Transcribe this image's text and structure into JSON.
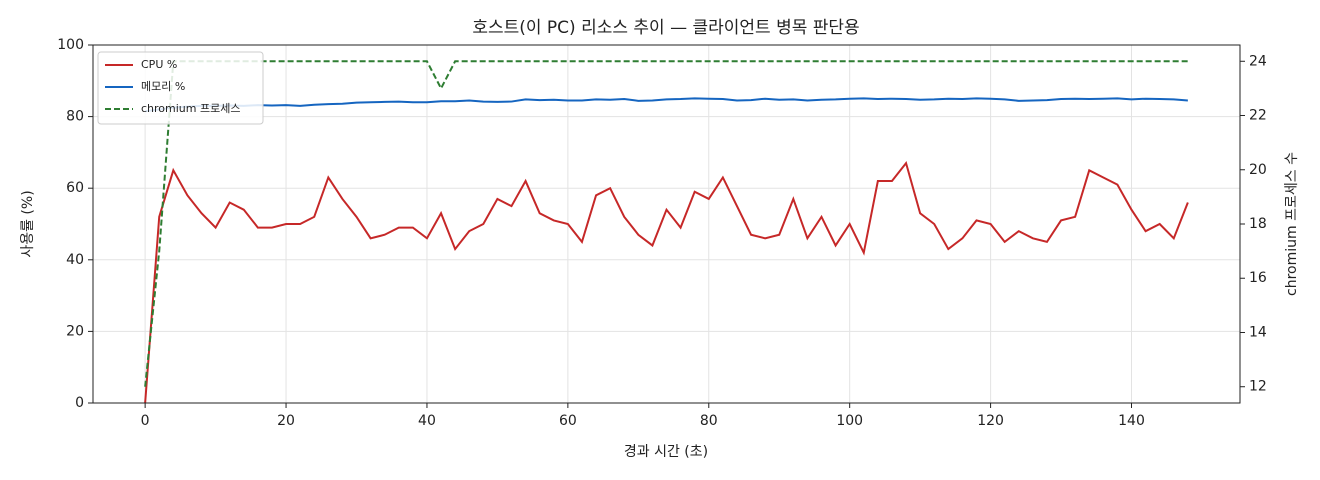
{
  "chart_data": {
    "type": "line",
    "title": "호스트(이 PC) 리소스 추이 — 클라이언트 병목 판단용",
    "xlabel": "경과 시간 (초)",
    "ylabel": "사용률 (%)",
    "y2label": "chromium 프로세스 수",
    "x": [
      0,
      2,
      4,
      6,
      8,
      10,
      12,
      14,
      16,
      18,
      20,
      22,
      24,
      26,
      28,
      30,
      32,
      34,
      36,
      38,
      40,
      42,
      44,
      46,
      48,
      50,
      52,
      54,
      56,
      58,
      60,
      62,
      64,
      66,
      68,
      70,
      72,
      74,
      76,
      78,
      80,
      82,
      84,
      86,
      88,
      90,
      92,
      94,
      96,
      98,
      100,
      102,
      104,
      106,
      108,
      110,
      112,
      114,
      116,
      118,
      120,
      122,
      124,
      126,
      128,
      130,
      132,
      134,
      136,
      138,
      140,
      142,
      144,
      146,
      148
    ],
    "series": [
      {
        "name": "CPU %",
        "color": "#c62828",
        "values": [
          0,
          52,
          65,
          58,
          53,
          49,
          56,
          54,
          49,
          49,
          50,
          50,
          52,
          63,
          57,
          52,
          46,
          47,
          49,
          49,
          46,
          53,
          43,
          48,
          50,
          57,
          55,
          62,
          53,
          51,
          50,
          45,
          58,
          60,
          52,
          47,
          44,
          54,
          49,
          59,
          57,
          63,
          55,
          47,
          46,
          47,
          57,
          46,
          52,
          44,
          50,
          42,
          62,
          62,
          67,
          53,
          50,
          43,
          46,
          51,
          50,
          45,
          48,
          46,
          45,
          51,
          52,
          65,
          63,
          61,
          54,
          48,
          50,
          46,
          56
        ]
      },
      {
        "name": "메모리 %",
        "color": "#1565c0",
        "values": [
          81.5,
          82,
          82.5,
          82.8,
          83,
          83,
          83.1,
          83,
          83.2,
          83.1,
          83.2,
          83,
          83.3,
          83.5,
          83.6,
          83.9,
          84,
          84.1,
          84.2,
          84,
          84,
          84.3,
          84.3,
          84.5,
          84.2,
          84.1,
          84.2,
          84.8,
          84.6,
          84.7,
          84.5,
          84.5,
          84.8,
          84.7,
          84.9,
          84.4,
          84.5,
          84.8,
          84.9,
          85.1,
          85,
          84.9,
          84.5,
          84.6,
          85,
          84.7,
          84.8,
          84.5,
          84.7,
          84.8,
          85,
          85.1,
          84.9,
          85,
          84.9,
          84.7,
          84.8,
          85,
          84.9,
          85.1,
          85,
          84.8,
          84.4,
          84.5,
          84.6,
          84.9,
          85,
          84.9,
          85,
          85.1,
          84.8,
          85,
          84.9,
          84.8,
          84.5
        ]
      },
      {
        "name": "chromium 프로세스",
        "color": "#2e7d32",
        "linestyle": "dashed",
        "axis": "y2",
        "values": [
          12,
          17,
          24,
          24,
          24,
          24,
          24,
          24,
          24,
          24,
          24,
          24,
          24,
          24,
          24,
          24,
          24,
          24,
          24,
          24,
          24,
          23,
          24,
          24,
          24,
          24,
          24,
          24,
          24,
          24,
          24,
          24,
          24,
          24,
          24,
          24,
          24,
          24,
          24,
          24,
          24,
          24,
          24,
          24,
          24,
          24,
          24,
          24,
          24,
          24,
          24,
          24,
          24,
          24,
          24,
          24,
          24,
          24,
          24,
          24,
          24,
          24,
          24,
          24,
          24,
          24,
          24,
          24,
          24,
          24,
          24,
          24,
          24,
          24,
          24
        ]
      }
    ],
    "xlim": [
      -7.4,
      155.4
    ],
    "xticks": [
      0,
      20,
      40,
      60,
      80,
      100,
      120,
      140
    ],
    "ylim": [
      0,
      100
    ],
    "yticks": [
      0,
      20,
      40,
      60,
      80,
      100
    ],
    "y2lim": [
      11.4,
      24.6
    ],
    "y2ticks": [
      12,
      14,
      16,
      18,
      20,
      22,
      24
    ],
    "grid": true,
    "legend": "upper-left"
  }
}
